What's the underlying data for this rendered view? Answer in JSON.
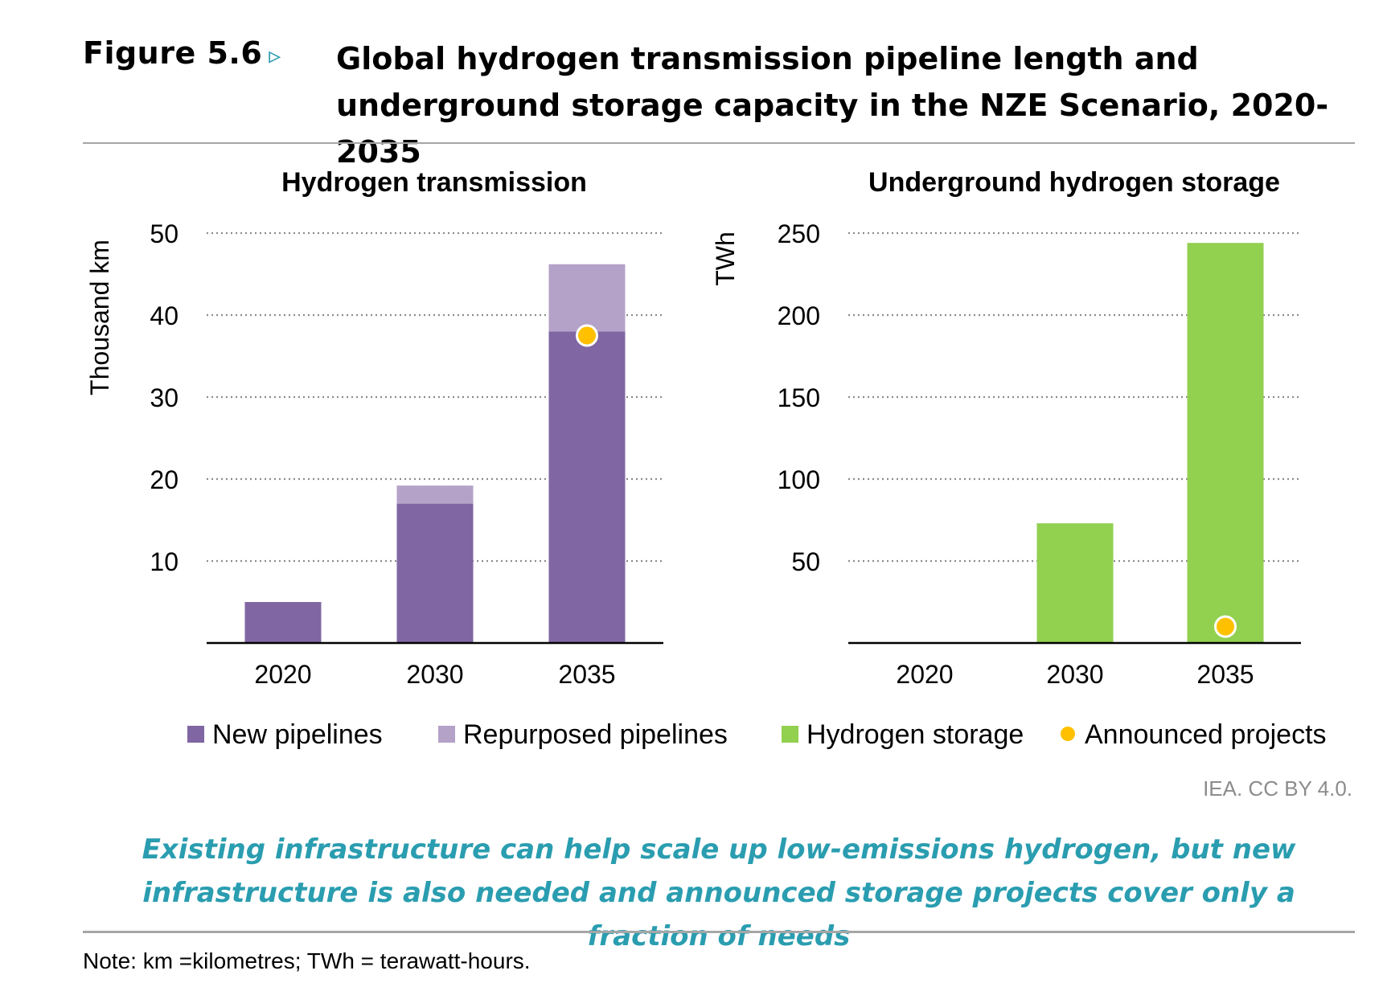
{
  "figure": {
    "label": "Figure 5.6",
    "arrow": "▹",
    "title": "Global hydrogen transmission pipeline length and underground storage capacity in the NZE Scenario, 2020-2035"
  },
  "colors": {
    "new_pipelines": "#8066a3",
    "repurposed_pipelines": "#b4a2c8",
    "hydrogen_storage": "#92d050",
    "announced": "#ffc000",
    "accent": "#2a9db0"
  },
  "legend": [
    {
      "label": "New pipelines",
      "color": "#8066a3",
      "shape": "square"
    },
    {
      "label": "Repurposed pipelines",
      "color": "#b4a2c8",
      "shape": "square"
    },
    {
      "label": "Hydrogen storage",
      "color": "#92d050",
      "shape": "square"
    },
    {
      "label": "Announced projects",
      "color": "#ffc000",
      "shape": "dot"
    }
  ],
  "chart_data": [
    {
      "type": "bar",
      "stacked": true,
      "title": "Hydrogen transmission",
      "ylabel": "Thousand km",
      "xlabel": "",
      "categories": [
        "2020",
        "2030",
        "2035"
      ],
      "ylim": [
        0,
        50
      ],
      "yticks": [
        10,
        20,
        30,
        40,
        50
      ],
      "grid": true,
      "series": [
        {
          "name": "New pipelines",
          "values": [
            5,
            17,
            38
          ]
        },
        {
          "name": "Repurposed pipelines",
          "values": [
            0,
            2.2,
            8.2
          ]
        }
      ],
      "markers": {
        "name": "Announced projects",
        "values": [
          null,
          null,
          37.5
        ]
      }
    },
    {
      "type": "bar",
      "stacked": false,
      "title": "Underground hydrogen storage",
      "ylabel": "TWh",
      "xlabel": "",
      "categories": [
        "2020",
        "2030",
        "2035"
      ],
      "ylim": [
        0,
        250
      ],
      "yticks": [
        50,
        100,
        150,
        200,
        250
      ],
      "grid": true,
      "series": [
        {
          "name": "Hydrogen storage",
          "values": [
            0,
            73,
            244
          ]
        }
      ],
      "markers": {
        "name": "Announced projects",
        "values": [
          null,
          null,
          10
        ]
      }
    }
  ],
  "credit": "IEA. CC BY 4.0.",
  "caption": "Existing infrastructure can help scale up low-emissions hydrogen, but new infrastructure is also needed and announced storage projects cover only a fraction of needs",
  "note": "Note: km =kilometres; TWh = terawatt-hours."
}
